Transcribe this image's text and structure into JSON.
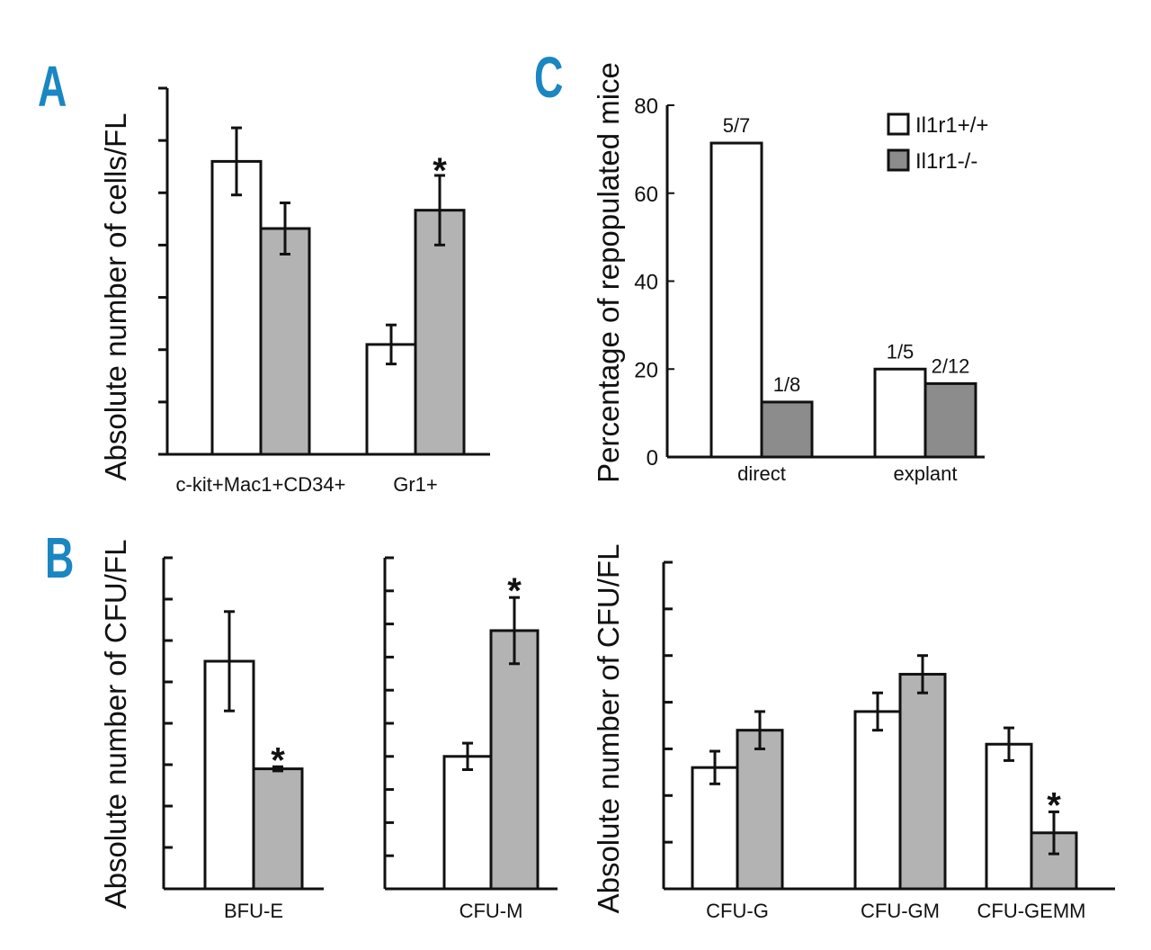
{
  "colors": {
    "control": "#ffffff",
    "knockout": "#b3b3b3",
    "knockout_dark": "#8c8c8c",
    "letters": "#1a86c2",
    "ink": "#111111"
  },
  "panels": [
    {
      "letter": "A",
      "type": "bar",
      "ylabel": "Absolute number of cells/FL",
      "ylim": [
        0,
        6.0
      ],
      "categories": [
        "c-kit+Mac1+CD34+",
        "Gr1+"
      ],
      "series": [
        {
          "name": "Il1r1+/+",
          "values": [
            4.8,
            1.8
          ],
          "errors": [
            0.55,
            0.32
          ]
        },
        {
          "name": "Il1r1-/-",
          "values": [
            3.7,
            4.0
          ],
          "errors": [
            0.42,
            0.57
          ]
        }
      ],
      "significance": [
        null,
        "*"
      ]
    },
    {
      "letter": "C",
      "type": "bar",
      "ylabel": "Percentage of repopulated mice",
      "ylim": [
        0,
        80
      ],
      "yticks": [
        "0",
        "20",
        "40",
        "60",
        "80"
      ],
      "categories": [
        "direct",
        "explant"
      ],
      "series": [
        {
          "name": "Il1r1+/+",
          "values": [
            71.4,
            20
          ],
          "labels": [
            "5/7",
            "1/5"
          ]
        },
        {
          "name": "Il1r1-/-",
          "values": [
            12.5,
            16.7
          ],
          "labels": [
            "1/8",
            "2/12"
          ]
        }
      ],
      "legend": [
        "Il1r1+/+",
        "Il1r1-/-"
      ]
    },
    {
      "letter": "B",
      "type": "bar",
      "ylabel": "Absolute number of CFU/FL",
      "ylim": [
        0,
        8
      ],
      "categories": [
        "BFU-E"
      ],
      "series": [
        {
          "name": "Il1r1+/+",
          "values": [
            5.5
          ],
          "errors": [
            1.2
          ]
        },
        {
          "name": "Il1r1-/-",
          "values": [
            2.9
          ],
          "errors": [
            0.05
          ]
        }
      ],
      "significance": [
        "*"
      ]
    },
    {
      "type": "bar",
      "ylabel": "",
      "ylim": [
        0,
        10
      ],
      "categories": [
        "CFU-M"
      ],
      "series": [
        {
          "name": "Il1r1+/+",
          "values": [
            4.0
          ],
          "errors": [
            0.4
          ]
        },
        {
          "name": "Il1r1-/-",
          "values": [
            7.8
          ],
          "errors": [
            1.0
          ]
        }
      ],
      "significance": [
        "*"
      ]
    },
    {
      "type": "bar",
      "ylabel": "Absolute number of CFU/FL",
      "ylim": [
        0,
        7
      ],
      "categories": [
        "CFU-G",
        "CFU-GM",
        "CFU-GEMM"
      ],
      "series": [
        {
          "name": "Il1r1+/+",
          "values": [
            2.6,
            3.8,
            3.1
          ],
          "errors": [
            0.35,
            0.4,
            0.35
          ]
        },
        {
          "name": "Il1r1-/-",
          "values": [
            3.4,
            4.6,
            1.2
          ],
          "errors": [
            0.4,
            0.4,
            0.45
          ]
        }
      ],
      "significance": [
        null,
        null,
        "*"
      ]
    }
  ],
  "chart_data": [
    {
      "panel": "A",
      "type": "bar",
      "title": "",
      "xlabel": "",
      "ylabel": "Absolute number of cells/FL",
      "categories": [
        "c-kit+Mac1+CD34+",
        "Gr1+"
      ],
      "series": [
        {
          "name": "Il1r1+/+",
          "values": [
            4.8,
            1.8
          ]
        },
        {
          "name": "Il1r1-/-",
          "values": [
            3.7,
            4.0
          ]
        }
      ],
      "ylim": [
        0,
        6.0
      ],
      "annotations": [
        "* over Gr1+ Il1r1-/-"
      ]
    },
    {
      "panel": "C",
      "type": "bar",
      "title": "",
      "xlabel": "",
      "ylabel": "Percentage of repopulated mice",
      "categories": [
        "direct",
        "explant"
      ],
      "series": [
        {
          "name": "Il1r1+/+",
          "values": [
            71.4,
            20
          ],
          "labels": [
            "5/7",
            "1/5"
          ]
        },
        {
          "name": "Il1r1-/-",
          "values": [
            12.5,
            16.7
          ],
          "labels": [
            "1/8",
            "2/12"
          ]
        }
      ],
      "ylim": [
        0,
        80
      ],
      "legend": "top-right"
    },
    {
      "panel": "B",
      "type": "bar",
      "ylabel": "Absolute number of CFU/FL",
      "categories": [
        "BFU-E"
      ],
      "series": [
        {
          "name": "Il1r1+/+",
          "values": [
            5.5
          ]
        },
        {
          "name": "Il1r1-/-",
          "values": [
            2.9
          ]
        }
      ],
      "ylim": [
        0,
        8
      ]
    },
    {
      "panel": "B",
      "type": "bar",
      "categories": [
        "CFU-M"
      ],
      "series": [
        {
          "name": "Il1r1+/+",
          "values": [
            4.0
          ]
        },
        {
          "name": "Il1r1-/-",
          "values": [
            7.8
          ]
        }
      ],
      "ylim": [
        0,
        10
      ]
    },
    {
      "panel": "B",
      "type": "bar",
      "ylabel": "Absolute number of CFU/FL",
      "categories": [
        "CFU-G",
        "CFU-GM",
        "CFU-GEMM"
      ],
      "series": [
        {
          "name": "Il1r1+/+",
          "values": [
            2.6,
            3.8,
            3.1
          ]
        },
        {
          "name": "Il1r1-/-",
          "values": [
            3.4,
            4.6,
            1.2
          ]
        }
      ],
      "ylim": [
        0,
        7
      ]
    }
  ]
}
